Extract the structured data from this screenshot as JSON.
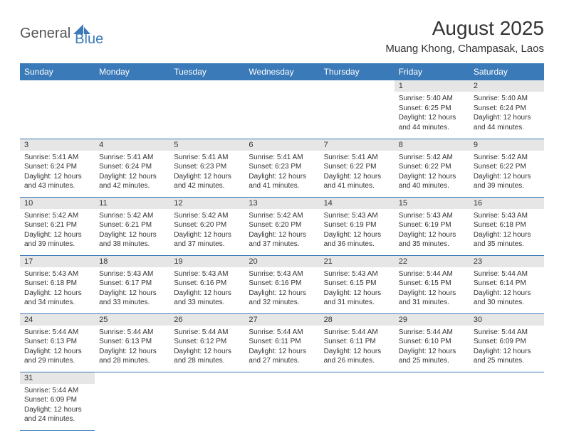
{
  "logo": {
    "general": "General",
    "blue": "Blue",
    "shape_color": "#3a7ab8"
  },
  "title": {
    "month": "August 2025",
    "location": "Muang Khong, Champasak, Laos"
  },
  "header_color": "#3a7ab8",
  "daynum_bg": "#e6e6e6",
  "weekdays": [
    "Sunday",
    "Monday",
    "Tuesday",
    "Wednesday",
    "Thursday",
    "Friday",
    "Saturday"
  ],
  "weeks": [
    [
      null,
      null,
      null,
      null,
      null,
      {
        "n": "1",
        "sr": "Sunrise: 5:40 AM",
        "ss": "Sunset: 6:25 PM",
        "d1": "Daylight: 12 hours",
        "d2": "and 44 minutes."
      },
      {
        "n": "2",
        "sr": "Sunrise: 5:40 AM",
        "ss": "Sunset: 6:24 PM",
        "d1": "Daylight: 12 hours",
        "d2": "and 44 minutes."
      }
    ],
    [
      {
        "n": "3",
        "sr": "Sunrise: 5:41 AM",
        "ss": "Sunset: 6:24 PM",
        "d1": "Daylight: 12 hours",
        "d2": "and 43 minutes."
      },
      {
        "n": "4",
        "sr": "Sunrise: 5:41 AM",
        "ss": "Sunset: 6:24 PM",
        "d1": "Daylight: 12 hours",
        "d2": "and 42 minutes."
      },
      {
        "n": "5",
        "sr": "Sunrise: 5:41 AM",
        "ss": "Sunset: 6:23 PM",
        "d1": "Daylight: 12 hours",
        "d2": "and 42 minutes."
      },
      {
        "n": "6",
        "sr": "Sunrise: 5:41 AM",
        "ss": "Sunset: 6:23 PM",
        "d1": "Daylight: 12 hours",
        "d2": "and 41 minutes."
      },
      {
        "n": "7",
        "sr": "Sunrise: 5:41 AM",
        "ss": "Sunset: 6:22 PM",
        "d1": "Daylight: 12 hours",
        "d2": "and 41 minutes."
      },
      {
        "n": "8",
        "sr": "Sunrise: 5:42 AM",
        "ss": "Sunset: 6:22 PM",
        "d1": "Daylight: 12 hours",
        "d2": "and 40 minutes."
      },
      {
        "n": "9",
        "sr": "Sunrise: 5:42 AM",
        "ss": "Sunset: 6:22 PM",
        "d1": "Daylight: 12 hours",
        "d2": "and 39 minutes."
      }
    ],
    [
      {
        "n": "10",
        "sr": "Sunrise: 5:42 AM",
        "ss": "Sunset: 6:21 PM",
        "d1": "Daylight: 12 hours",
        "d2": "and 39 minutes."
      },
      {
        "n": "11",
        "sr": "Sunrise: 5:42 AM",
        "ss": "Sunset: 6:21 PM",
        "d1": "Daylight: 12 hours",
        "d2": "and 38 minutes."
      },
      {
        "n": "12",
        "sr": "Sunrise: 5:42 AM",
        "ss": "Sunset: 6:20 PM",
        "d1": "Daylight: 12 hours",
        "d2": "and 37 minutes."
      },
      {
        "n": "13",
        "sr": "Sunrise: 5:42 AM",
        "ss": "Sunset: 6:20 PM",
        "d1": "Daylight: 12 hours",
        "d2": "and 37 minutes."
      },
      {
        "n": "14",
        "sr": "Sunrise: 5:43 AM",
        "ss": "Sunset: 6:19 PM",
        "d1": "Daylight: 12 hours",
        "d2": "and 36 minutes."
      },
      {
        "n": "15",
        "sr": "Sunrise: 5:43 AM",
        "ss": "Sunset: 6:19 PM",
        "d1": "Daylight: 12 hours",
        "d2": "and 35 minutes."
      },
      {
        "n": "16",
        "sr": "Sunrise: 5:43 AM",
        "ss": "Sunset: 6:18 PM",
        "d1": "Daylight: 12 hours",
        "d2": "and 35 minutes."
      }
    ],
    [
      {
        "n": "17",
        "sr": "Sunrise: 5:43 AM",
        "ss": "Sunset: 6:18 PM",
        "d1": "Daylight: 12 hours",
        "d2": "and 34 minutes."
      },
      {
        "n": "18",
        "sr": "Sunrise: 5:43 AM",
        "ss": "Sunset: 6:17 PM",
        "d1": "Daylight: 12 hours",
        "d2": "and 33 minutes."
      },
      {
        "n": "19",
        "sr": "Sunrise: 5:43 AM",
        "ss": "Sunset: 6:16 PM",
        "d1": "Daylight: 12 hours",
        "d2": "and 33 minutes."
      },
      {
        "n": "20",
        "sr": "Sunrise: 5:43 AM",
        "ss": "Sunset: 6:16 PM",
        "d1": "Daylight: 12 hours",
        "d2": "and 32 minutes."
      },
      {
        "n": "21",
        "sr": "Sunrise: 5:43 AM",
        "ss": "Sunset: 6:15 PM",
        "d1": "Daylight: 12 hours",
        "d2": "and 31 minutes."
      },
      {
        "n": "22",
        "sr": "Sunrise: 5:44 AM",
        "ss": "Sunset: 6:15 PM",
        "d1": "Daylight: 12 hours",
        "d2": "and 31 minutes."
      },
      {
        "n": "23",
        "sr": "Sunrise: 5:44 AM",
        "ss": "Sunset: 6:14 PM",
        "d1": "Daylight: 12 hours",
        "d2": "and 30 minutes."
      }
    ],
    [
      {
        "n": "24",
        "sr": "Sunrise: 5:44 AM",
        "ss": "Sunset: 6:13 PM",
        "d1": "Daylight: 12 hours",
        "d2": "and 29 minutes."
      },
      {
        "n": "25",
        "sr": "Sunrise: 5:44 AM",
        "ss": "Sunset: 6:13 PM",
        "d1": "Daylight: 12 hours",
        "d2": "and 28 minutes."
      },
      {
        "n": "26",
        "sr": "Sunrise: 5:44 AM",
        "ss": "Sunset: 6:12 PM",
        "d1": "Daylight: 12 hours",
        "d2": "and 28 minutes."
      },
      {
        "n": "27",
        "sr": "Sunrise: 5:44 AM",
        "ss": "Sunset: 6:11 PM",
        "d1": "Daylight: 12 hours",
        "d2": "and 27 minutes."
      },
      {
        "n": "28",
        "sr": "Sunrise: 5:44 AM",
        "ss": "Sunset: 6:11 PM",
        "d1": "Daylight: 12 hours",
        "d2": "and 26 minutes."
      },
      {
        "n": "29",
        "sr": "Sunrise: 5:44 AM",
        "ss": "Sunset: 6:10 PM",
        "d1": "Daylight: 12 hours",
        "d2": "and 25 minutes."
      },
      {
        "n": "30",
        "sr": "Sunrise: 5:44 AM",
        "ss": "Sunset: 6:09 PM",
        "d1": "Daylight: 12 hours",
        "d2": "and 25 minutes."
      }
    ],
    [
      {
        "n": "31",
        "sr": "Sunrise: 5:44 AM",
        "ss": "Sunset: 6:09 PM",
        "d1": "Daylight: 12 hours",
        "d2": "and 24 minutes."
      },
      null,
      null,
      null,
      null,
      null,
      null
    ]
  ]
}
